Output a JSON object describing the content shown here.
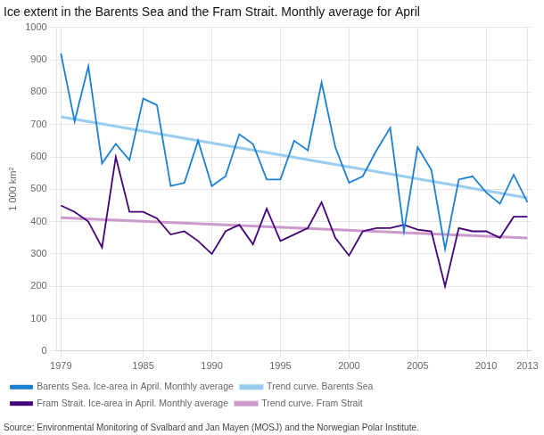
{
  "chart_data": {
    "type": "line",
    "title": "Ice extent in the Barents Sea and the Fram Strait. Monthly average for April",
    "ylabel": "1 000 km²",
    "source": "Source: Environmental Monitoring of Svalbard and Jan Mayen (MOSJ) and the Norwegian Polar Institute.",
    "xlim": [
      1978.7,
      2013.3
    ],
    "xticks": [
      1979,
      1985,
      1990,
      1995,
      2000,
      2005,
      2010,
      2013
    ],
    "ylim": [
      0,
      1000
    ],
    "yticks": [
      0,
      100,
      200,
      300,
      400,
      500,
      600,
      700,
      800,
      900,
      1000
    ],
    "grid": true,
    "legend": "bottom",
    "series": [
      {
        "name": "Barents Sea. Ice-area in April. Monthly average",
        "color": "#1b7fd4",
        "x": [
          1979,
          1980,
          1981,
          1982,
          1983,
          1984,
          1985,
          1986,
          1987,
          1988,
          1989,
          1990,
          1991,
          1992,
          1993,
          1994,
          1995,
          1996,
          1997,
          1998,
          1999,
          2000,
          2001,
          2002,
          2003,
          2004,
          2005,
          2006,
          2007,
          2008,
          2009,
          2010,
          2011,
          2012,
          2013
        ],
        "values": [
          920,
          710,
          880,
          580,
          640,
          590,
          780,
          760,
          510,
          520,
          650,
          510,
          540,
          670,
          640,
          530,
          530,
          650,
          620,
          830,
          630,
          520,
          540,
          620,
          690,
          370,
          630,
          560,
          315,
          530,
          540,
          490,
          455,
          545,
          460
        ]
      },
      {
        "name": "Trend curve. Barents Sea",
        "color": "#99ccee",
        "x": [
          1979,
          2013
        ],
        "values": [
          724.19,
          473.24
        ]
      },
      {
        "name": "Fram Strait. Ice-area in April. Monthly average",
        "color": "#440077",
        "x": [
          1979,
          1980,
          1981,
          1982,
          1983,
          1984,
          1985,
          1986,
          1987,
          1988,
          1989,
          1990,
          1991,
          1992,
          1993,
          1994,
          1995,
          1996,
          1997,
          1998,
          1999,
          2000,
          2001,
          2002,
          2003,
          2004,
          2005,
          2006,
          2007,
          2008,
          2009,
          2010,
          2011,
          2012,
          2013
        ],
        "values": [
          450,
          430,
          400,
          320,
          600,
          430,
          430,
          410,
          360,
          370,
          340,
          300,
          370,
          390,
          330,
          440,
          340,
          360,
          380,
          460,
          350,
          295,
          370,
          380,
          380,
          390,
          375,
          370,
          200,
          380,
          370,
          370,
          350,
          415,
          415
        ]
      },
      {
        "name": "Trend curve. Fram Strait",
        "color": "#cc99cc",
        "x": [
          1979,
          2013
        ],
        "values": [
          411.95,
          349.19
        ]
      }
    ]
  }
}
